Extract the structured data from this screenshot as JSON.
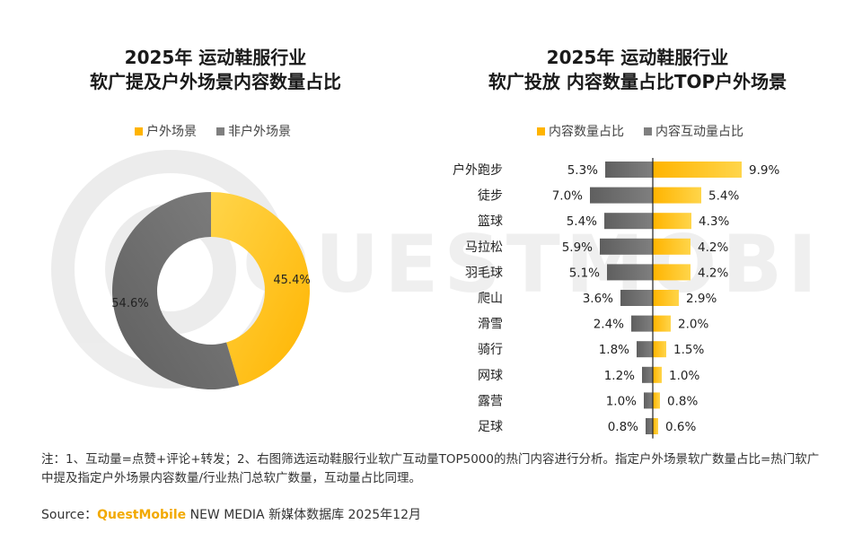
{
  "left_title": {
    "line1": "2025年 运动鞋服行业",
    "line2": "软广提及户外场景内容数量占比"
  },
  "right_title": {
    "line1": "2025年 运动鞋服行业",
    "line2": "软广投放 内容数量占比TOP户外场景"
  },
  "colors": {
    "yellow": "#FFB400",
    "yellow_light": "#FFD54A",
    "gray": "#7F7F7F",
    "gray_dark": "#5f5f5f"
  },
  "note": "注：1、互动量=点赞+评论+转发；2、右图筛选运动鞋服行业软广互动量TOP5000的热门内容进行分析。指定户外场景软广数量占比=热门软广中提及指定户外场景内容数量/行业热门总软广数量，互动量占比同理。",
  "source": {
    "prefix": "Source：",
    "brand": "QuestMobile",
    "suffix": " NEW MEDIA 新媒体数据库 2025年12月"
  },
  "watermark": "QUESTMOBILE",
  "chart_data": [
    {
      "type": "pie",
      "title": "2025年 运动鞋服行业 软广提及户外场景内容数量占比",
      "legend": [
        "户外场景",
        "非户外场景"
      ],
      "slices": [
        {
          "name": "户外场景",
          "value": 45.4,
          "label": "45.4%"
        },
        {
          "name": "非户外场景",
          "value": 54.6,
          "label": "54.6%"
        }
      ]
    },
    {
      "type": "bar",
      "title": "2025年 运动鞋服行业 软广投放 内容数量占比TOP户外场景",
      "legend": [
        "内容数量占比",
        "内容互动量占比"
      ],
      "categories": [
        "户外跑步",
        "徒步",
        "篮球",
        "马拉松",
        "羽毛球",
        "爬山",
        "滑雪",
        "骑行",
        "网球",
        "露营",
        "足球"
      ],
      "series": [
        {
          "name": "内容数量占比",
          "values": [
            9.9,
            5.4,
            4.3,
            4.2,
            4.2,
            2.9,
            2.0,
            1.5,
            1.0,
            0.8,
            0.6
          ],
          "labels": [
            "9.9%",
            "5.4%",
            "4.3%",
            "4.2%",
            "4.2%",
            "2.9%",
            "2.0%",
            "1.5%",
            "1.0%",
            "0.8%",
            "0.6%"
          ]
        },
        {
          "name": "内容互动量占比",
          "values": [
            5.3,
            7.0,
            5.4,
            5.9,
            5.1,
            3.6,
            2.4,
            1.8,
            1.2,
            1.0,
            0.8
          ],
          "labels": [
            "5.3%",
            "7.0%",
            "5.4%",
            "5.9%",
            "5.1%",
            "3.6%",
            "2.4%",
            "1.8%",
            "1.2%",
            "1.0%",
            "0.8%"
          ]
        }
      ]
    }
  ]
}
